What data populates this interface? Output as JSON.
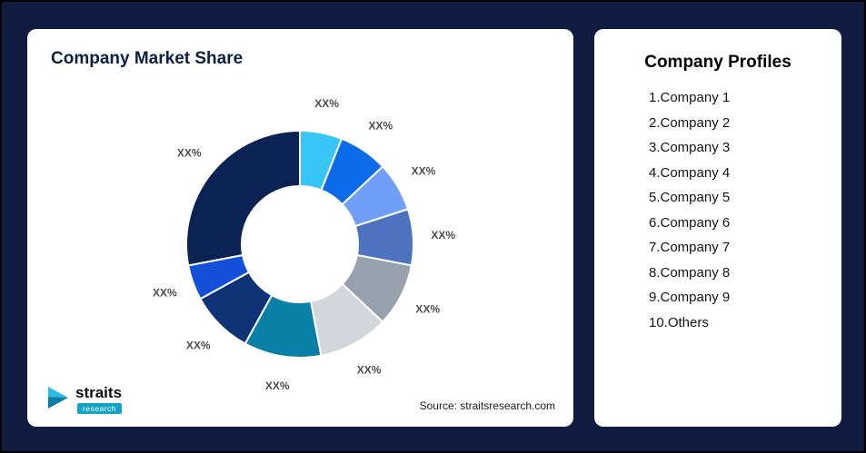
{
  "canvas": {
    "background": "#101d40"
  },
  "market_share_card": {
    "title": "Company Market Share",
    "source": "Source: straitsresearch.com",
    "logo": {
      "brand": "straits",
      "sub_brand": "research"
    }
  },
  "profiles_card": {
    "title": "Company Profiles",
    "items": [
      "1.Company 1",
      "2.Company 2",
      "3.Company 3",
      "4.Company 4",
      "5.Company 5",
      "6.Company 6",
      "7.Company 7",
      "8.Company 8",
      "9.Company 9",
      "10.Others"
    ]
  },
  "chart_data": {
    "type": "pie",
    "title": "Company Market Share",
    "donut": true,
    "legend_position": "none",
    "labels": [
      "XX%",
      "XX%",
      "XX%",
      "XX%",
      "XX%",
      "XX%",
      "XX%",
      "XX%",
      "XX%",
      "XX%"
    ],
    "values": [
      6,
      7,
      7,
      8,
      9,
      10,
      11,
      9,
      5,
      28
    ],
    "colors": [
      "#38c6f9",
      "#0b6be8",
      "#6f9ff6",
      "#4e73be",
      "#98a1ab",
      "#d3d7db",
      "#0b80a6",
      "#0d3276",
      "#1551d8",
      "#0a2254"
    ]
  }
}
